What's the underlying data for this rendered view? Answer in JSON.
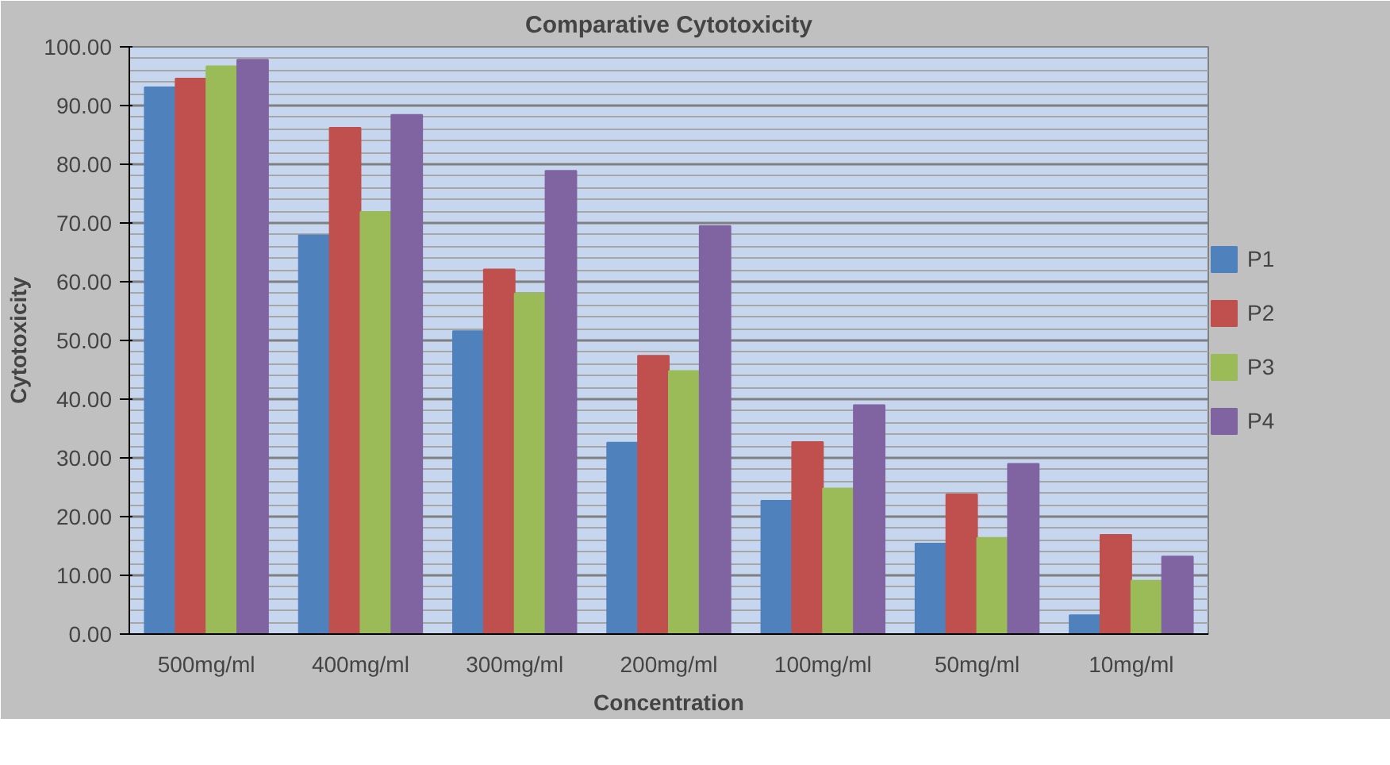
{
  "chart_data": {
    "type": "bar",
    "title": "Comparative Cytotoxicity",
    "xlabel": "Concentration",
    "ylabel": "Cytotoxicity",
    "categories": [
      "500mg/ml",
      "400mg/ml",
      "300mg/ml",
      "200mg/ml",
      "100mg/ml",
      "50mg/ml",
      "10mg/ml"
    ],
    "series": [
      {
        "name": "P1",
        "color": "#4f81bd",
        "values": [
          93.1,
          67.9,
          51.6,
          32.6,
          22.7,
          15.4,
          3.2
        ]
      },
      {
        "name": "P2",
        "color": "#c0504d",
        "values": [
          94.6,
          86.2,
          62.1,
          47.4,
          32.7,
          23.8,
          16.9
        ]
      },
      {
        "name": "P3",
        "color": "#9bbb59",
        "values": [
          96.7,
          71.9,
          58.0,
          44.8,
          24.8,
          16.4,
          9.1
        ]
      },
      {
        "name": "P4",
        "color": "#8064a2",
        "values": [
          97.8,
          88.4,
          78.9,
          69.5,
          39.0,
          29.0,
          13.2
        ]
      }
    ],
    "ylim": [
      0,
      100
    ],
    "yticks": [
      {
        "value": 0,
        "label": "0.00"
      },
      {
        "value": 10,
        "label": "10.00"
      },
      {
        "value": 20,
        "label": "20.00"
      },
      {
        "value": 30,
        "label": "30.00"
      },
      {
        "value": 40,
        "label": "40.00"
      },
      {
        "value": 50,
        "label": "50.00"
      },
      {
        "value": 60,
        "label": "60.00"
      },
      {
        "value": 70,
        "label": "70.00"
      },
      {
        "value": 80,
        "label": "80.00"
      },
      {
        "value": 90,
        "label": "90.00"
      },
      {
        "value": 100,
        "label": "100.00"
      }
    ],
    "grid": "y",
    "legend": "right"
  }
}
